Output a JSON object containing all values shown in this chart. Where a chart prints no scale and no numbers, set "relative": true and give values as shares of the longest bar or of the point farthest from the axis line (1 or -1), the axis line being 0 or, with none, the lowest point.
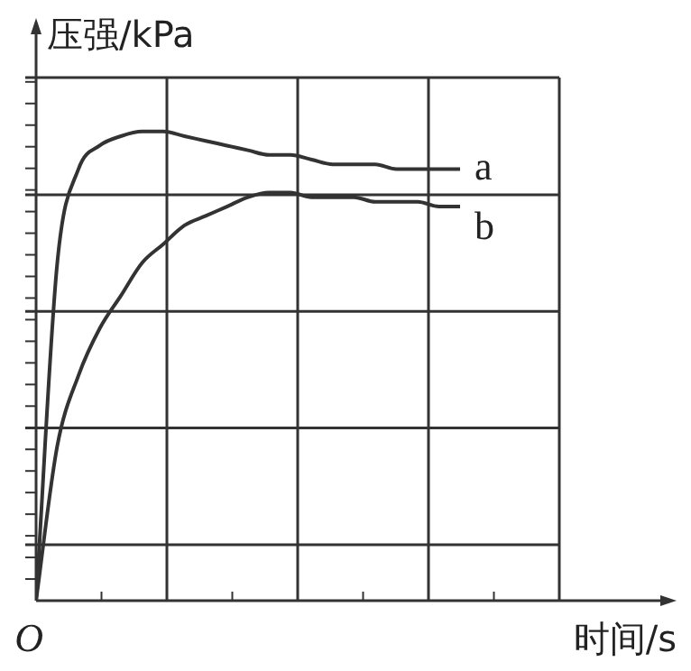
{
  "chart_data": {
    "type": "line",
    "relative": true,
    "xlabel": "时间/s",
    "ylabel": "压强/kPa",
    "annotations": [
      "O"
    ],
    "grid": true,
    "legend": false,
    "marker": "none",
    "line_style": "solid",
    "categories": [
      null,
      null,
      null,
      null,
      null,
      null,
      null,
      null,
      null,
      null,
      null,
      null,
      null,
      null,
      null,
      null,
      null,
      null,
      null,
      null,
      null
    ],
    "series": [
      {
        "name": "a",
        "color": "#333333",
        "values": [
          0,
          0.72,
          0.92,
          0.97,
          0.99,
          1.0,
          1.0,
          0.99,
          0.98,
          0.97,
          0.96,
          0.95,
          0.95,
          0.94,
          0.93,
          0.93,
          0.93,
          0.92,
          0.92,
          0.92,
          0.92
        ]
      },
      {
        "name": "b",
        "color": "#333333",
        "values": [
          0,
          0.33,
          0.48,
          0.58,
          0.65,
          0.72,
          0.76,
          0.8,
          0.82,
          0.84,
          0.86,
          0.87,
          0.87,
          0.86,
          0.86,
          0.86,
          0.85,
          0.85,
          0.85,
          0.84,
          0.84
        ]
      }
    ]
  }
}
